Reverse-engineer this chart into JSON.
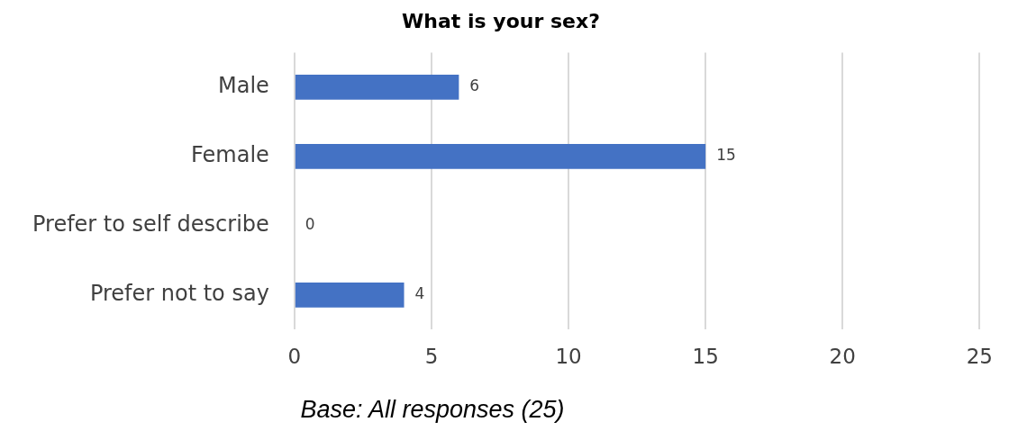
{
  "chart_data": {
    "type": "bar",
    "orientation": "horizontal",
    "title": "What is your sex?",
    "categories": [
      "Male",
      "Female",
      "Prefer to self describe",
      "Prefer not to say"
    ],
    "values": [
      6,
      15,
      0,
      4
    ],
    "color": "#4472c4",
    "xlim": [
      0,
      25
    ],
    "xticks": [
      0,
      5,
      10,
      15,
      20,
      25
    ],
    "grid": "x",
    "legend": false,
    "data_labels": true,
    "annotations": [
      "Base: All responses (25)"
    ]
  }
}
